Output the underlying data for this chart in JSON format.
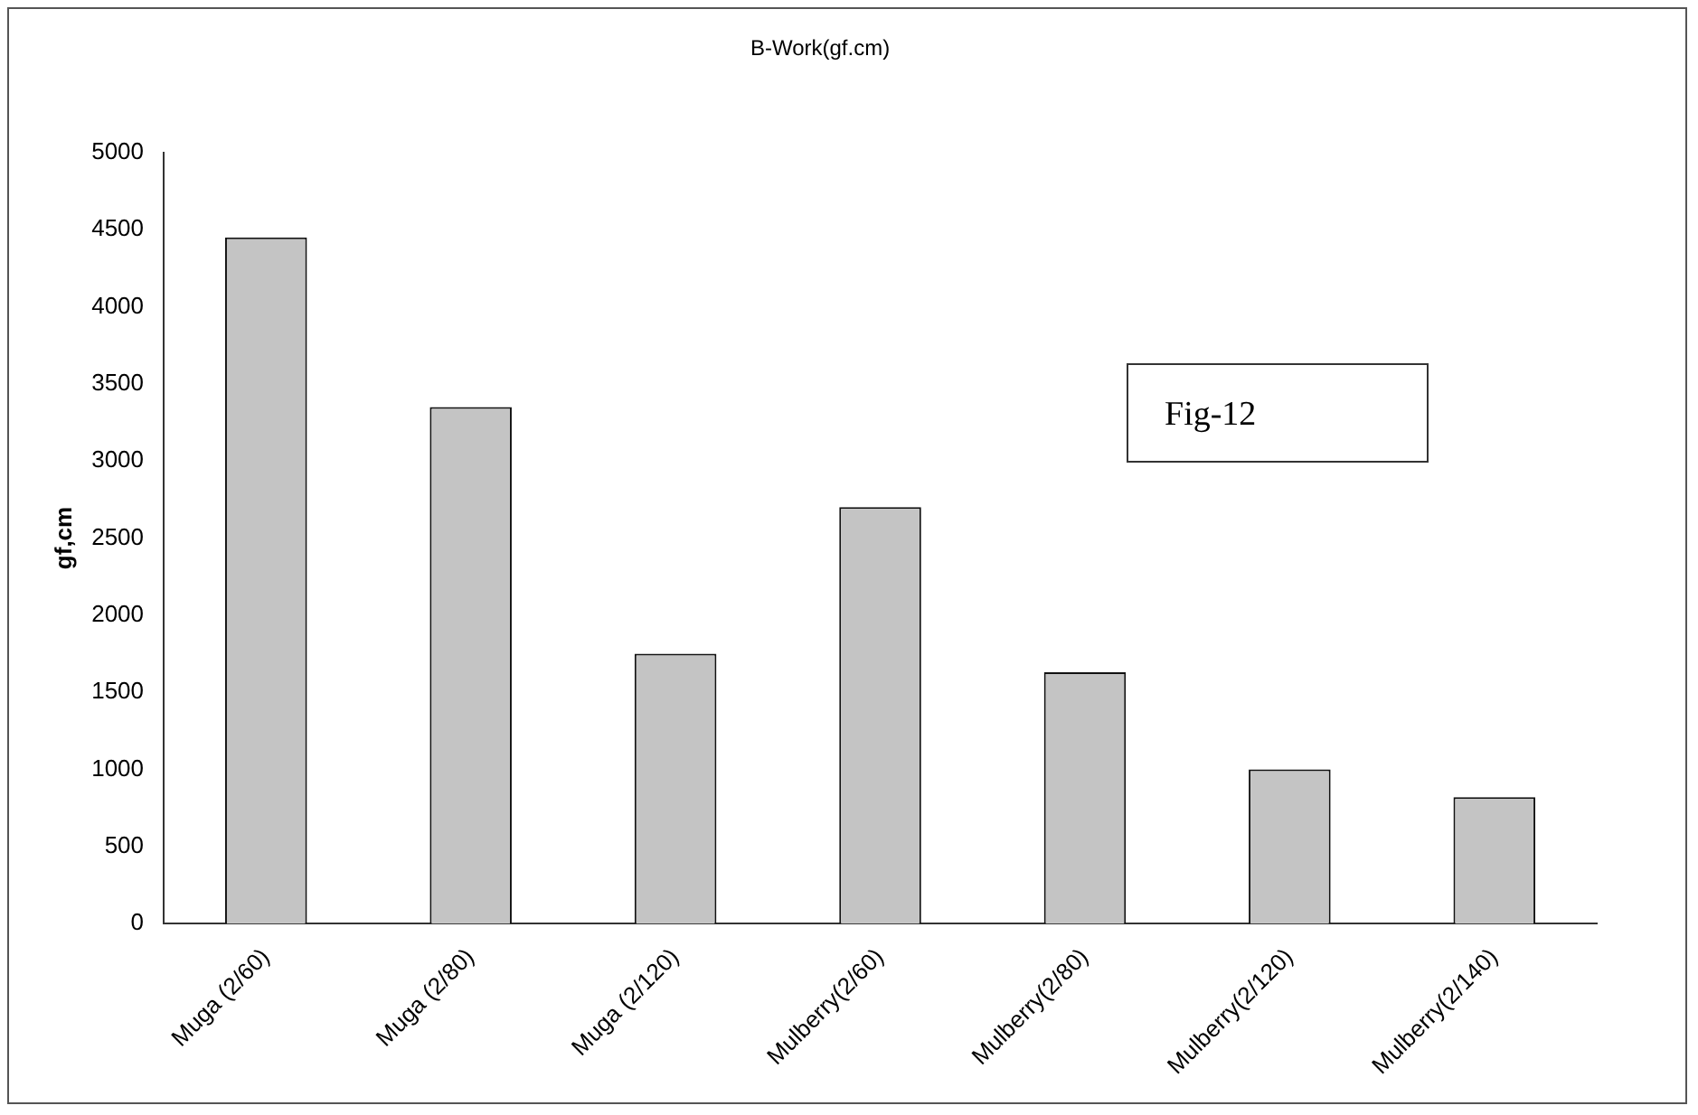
{
  "chart_data": {
    "type": "bar",
    "title": "B-Work(gf.cm)",
    "ylabel": "gf,cm",
    "categories": [
      "Muga (2/60)",
      "Muga (2/80)",
      "Muga (2/120)",
      "Mulberry(2/60)",
      "Mulberry(2/80)",
      "Mulberry(2/120)",
      "Mulberry(2/140)"
    ],
    "values": [
      4450,
      3350,
      1750,
      2700,
      1630,
      1000,
      820
    ],
    "color": "#c4c4c4",
    "ylim": [
      0,
      5000
    ],
    "yticks": [
      0,
      500,
      1000,
      1500,
      2000,
      2500,
      3000,
      3500,
      4000,
      4500,
      5000
    ],
    "annotations": [
      "Fig-12"
    ]
  }
}
